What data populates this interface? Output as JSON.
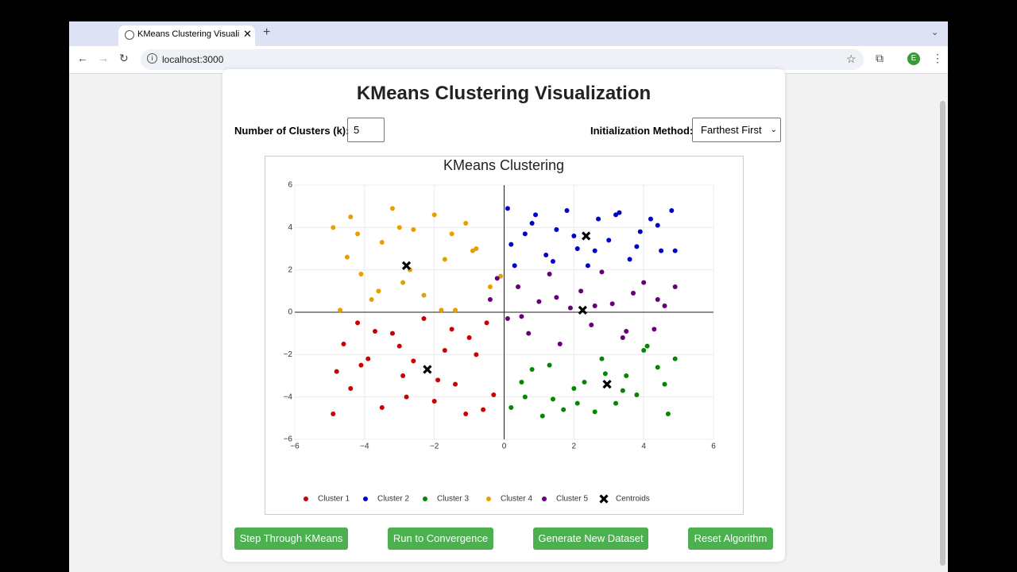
{
  "browser": {
    "tab_title": "KMeans Clustering Visualization",
    "url": "localhost:3000",
    "profile_initial": "E"
  },
  "page": {
    "title": "KMeans Clustering Visualization",
    "k_label": "Number of Clusters (k):",
    "k_value": 5,
    "init_label": "Initialization Method:",
    "init_value": "Farthest First",
    "buttons": [
      "Step Through KMeans",
      "Run to Convergence",
      "Generate New Dataset",
      "Reset Algorithm"
    ]
  },
  "chart_data": {
    "type": "scatter",
    "title": "KMeans Clustering",
    "xlim": [
      -6,
      6
    ],
    "ylim": [
      -6,
      6
    ],
    "xticks": [
      {
        "value": -6,
        "label": "−6"
      },
      {
        "value": -4,
        "label": "−4"
      },
      {
        "value": -2,
        "label": "−2"
      },
      0,
      2,
      4,
      6
    ],
    "yticks": [
      {
        "value": -6,
        "label": "−6"
      },
      {
        "value": -4,
        "label": "−4"
      },
      {
        "value": -2,
        "label": "−2"
      },
      0,
      2,
      4,
      6
    ],
    "grid": true,
    "zero_lines": true,
    "legend": "bottom",
    "series": [
      {
        "name": "Cluster 1",
        "color": "#cc0000",
        "marker": "circle",
        "x": [
          -4.9,
          -4.6,
          -4.4,
          -4.2,
          -3.9,
          -3.5,
          -3.2,
          -2.9,
          -2.6,
          -2.3,
          -2.0,
          -1.7,
          -1.4,
          -1.1,
          -0.8,
          -0.5,
          -0.3,
          -4.8,
          -3.7,
          -2.8,
          -1.9,
          -1.0,
          -0.6,
          -4.1,
          -3.0,
          -1.5
        ],
        "y": [
          -4.8,
          -1.5,
          -3.6,
          -0.5,
          -2.2,
          -4.5,
          -1.0,
          -3.0,
          -2.3,
          -0.3,
          -4.2,
          -1.8,
          -3.4,
          -4.8,
          -2.0,
          -0.5,
          -3.9,
          -2.8,
          -0.9,
          -4.0,
          -3.2,
          -1.2,
          -4.6,
          -2.5,
          -1.6,
          -0.8
        ]
      },
      {
        "name": "Cluster 2",
        "color": "#0000cc",
        "marker": "circle",
        "x": [
          0.1,
          0.3,
          0.6,
          0.9,
          1.2,
          1.5,
          1.8,
          2.1,
          2.4,
          2.7,
          3.0,
          3.3,
          3.6,
          3.9,
          4.2,
          4.5,
          4.8,
          0.2,
          0.8,
          1.4,
          2.0,
          2.6,
          3.2,
          3.8,
          4.4,
          4.9
        ],
        "y": [
          4.9,
          2.2,
          3.7,
          4.6,
          2.7,
          3.9,
          4.8,
          3.0,
          2.2,
          4.4,
          3.4,
          4.7,
          2.5,
          3.8,
          4.4,
          2.9,
          4.8,
          3.2,
          4.2,
          2.4,
          3.6,
          2.9,
          4.6,
          3.1,
          4.1,
          2.9
        ]
      },
      {
        "name": "Cluster 3",
        "color": "#008800",
        "marker": "circle",
        "x": [
          0.2,
          0.5,
          0.8,
          1.1,
          1.4,
          1.7,
          2.0,
          2.3,
          2.6,
          2.9,
          3.2,
          3.5,
          3.8,
          4.1,
          4.4,
          4.7,
          4.9,
          0.6,
          1.3,
          2.1,
          2.8,
          3.4,
          4.0,
          4.6
        ],
        "y": [
          -4.5,
          -3.3,
          -2.7,
          -4.9,
          -4.1,
          -4.6,
          -3.6,
          -3.3,
          -4.7,
          -2.9,
          -4.3,
          -3.0,
          -3.9,
          -1.6,
          -2.6,
          -4.8,
          -2.2,
          -4.0,
          -2.5,
          -4.3,
          -2.2,
          -3.7,
          -1.8,
          -3.4
        ]
      },
      {
        "name": "Cluster 4",
        "color": "#e69f00",
        "marker": "circle",
        "x": [
          -4.9,
          -4.7,
          -4.4,
          -4.1,
          -3.8,
          -3.5,
          -3.2,
          -2.9,
          -2.6,
          -2.3,
          -2.0,
          -1.7,
          -1.4,
          -1.1,
          -0.8,
          -0.4,
          -0.1,
          -4.5,
          -3.6,
          -2.7,
          -1.8,
          -0.9,
          -4.2,
          -3.0,
          -1.5
        ],
        "y": [
          4.0,
          0.1,
          4.5,
          1.8,
          0.6,
          3.3,
          4.9,
          1.4,
          3.9,
          0.8,
          4.6,
          2.5,
          0.1,
          4.2,
          3.0,
          1.2,
          1.7,
          2.6,
          1.0,
          2.0,
          0.1,
          2.9,
          3.7,
          4.0,
          3.7
        ]
      },
      {
        "name": "Cluster 5",
        "color": "#660077",
        "marker": "circle",
        "x": [
          -0.4,
          -0.2,
          0.1,
          0.4,
          0.7,
          1.0,
          1.3,
          1.6,
          1.9,
          2.2,
          2.5,
          2.8,
          3.1,
          3.4,
          3.7,
          4.0,
          4.3,
          4.6,
          4.9,
          0.5,
          1.5,
          2.6,
          3.5,
          4.4
        ],
        "y": [
          0.6,
          1.6,
          -0.3,
          1.2,
          -1.0,
          0.5,
          1.8,
          -1.5,
          0.2,
          1.0,
          -0.6,
          1.9,
          0.4,
          -1.2,
          0.9,
          1.4,
          -0.8,
          0.3,
          1.2,
          -0.2,
          0.7,
          0.3,
          -0.9,
          0.6
        ]
      },
      {
        "name": "Centroids",
        "color": "#000000",
        "marker": "x",
        "x": [
          -2.8,
          2.35,
          2.95,
          -2.2,
          2.25
        ],
        "y": [
          2.2,
          3.6,
          -3.4,
          -2.7,
          0.1
        ]
      }
    ]
  }
}
